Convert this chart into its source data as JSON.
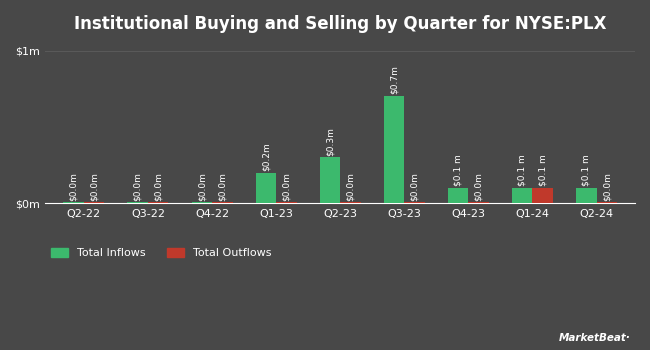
{
  "title": "Institutional Buying and Selling by Quarter for NYSE:PLX",
  "quarters": [
    "Q2-22",
    "Q3-22",
    "Q4-22",
    "Q1-23",
    "Q2-23",
    "Q3-23",
    "Q4-23",
    "Q1-24",
    "Q2-24"
  ],
  "inflows": [
    0.005,
    0.005,
    0.005,
    0.2,
    0.3,
    0.7,
    0.1,
    0.1,
    0.1
  ],
  "outflows": [
    0.005,
    0.005,
    0.005,
    0.005,
    0.005,
    0.005,
    0.005,
    0.1,
    0.005
  ],
  "inflow_labels": [
    "$0.0m",
    "$0.0m",
    "$0.0m",
    "$0.2m",
    "$0.3m",
    "$0.7m",
    "$0.1 m",
    "$0.1 m",
    "$0.1 m"
  ],
  "outflow_labels": [
    "$0.0m",
    "$0.0m",
    "$0.0m",
    "$0.0m",
    "$0.0m",
    "$0.0m",
    "$0.0m",
    "$0.1 m",
    "$0.0m"
  ],
  "inflow_color": "#3cb96d",
  "outflow_color": "#c0392b",
  "background_color": "#484848",
  "text_color": "#ffffff",
  "grid_color": "#5a5a5a",
  "bar_width": 0.32,
  "ylim": [
    0,
    1.05
  ],
  "ytick_vals": [
    0,
    1.0
  ],
  "ytick_labels": [
    "$0m",
    "$1m"
  ],
  "legend_inflow": "Total Inflows",
  "legend_outflow": "Total Outflows",
  "title_fontsize": 12,
  "axis_fontsize": 8,
  "label_fontsize": 6.5
}
